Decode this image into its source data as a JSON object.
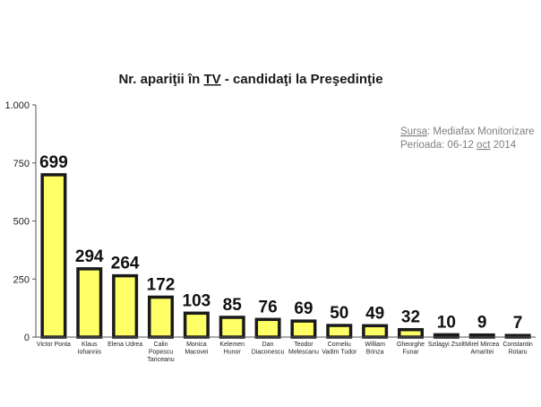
{
  "chart_data": {
    "type": "bar",
    "title_parts": [
      "Nr. apariţii în ",
      "TV",
      " - candidaţi la Preşedinţie"
    ],
    "source": {
      "line1_label": "Sursa",
      "line1_rest": ": Mediafax Monitorizare",
      "line2_pre": "Perioada: 06-12 ",
      "line2_u": "oct",
      "line2_post": " 2014"
    },
    "ylim": [
      0,
      1000
    ],
    "yticks": [
      0,
      250,
      500,
      750,
      1000
    ],
    "ytick_labels": [
      "0",
      "250",
      "500",
      "750",
      "1.000"
    ],
    "categories": [
      [
        "Victor Ponta"
      ],
      [
        "Klaus",
        "Iohannis"
      ],
      [
        "Elena Udrea"
      ],
      [
        "Calin",
        "Popescu",
        "Tariceanu"
      ],
      [
        "Monica",
        "Macovei"
      ],
      [
        "Kelemen",
        "Hunor"
      ],
      [
        "Dan",
        "Diaconescu"
      ],
      [
        "Teodor",
        "Melescanu"
      ],
      [
        "Corneliu",
        "Vadim Tudor"
      ],
      [
        "William",
        "Brinza"
      ],
      [
        "Gheorghe",
        "Funar"
      ],
      [
        "Szilagyi Zsolt"
      ],
      [
        "Mirel Mircea",
        "Amaritei"
      ],
      [
        "Constantin",
        "Rotaru"
      ]
    ],
    "values": [
      699,
      294,
      264,
      172,
      103,
      85,
      76,
      69,
      50,
      49,
      32,
      10,
      9,
      7
    ],
    "bar_color": "#ffff66",
    "bar_edge": "#1a1a1a",
    "grid": false
  }
}
